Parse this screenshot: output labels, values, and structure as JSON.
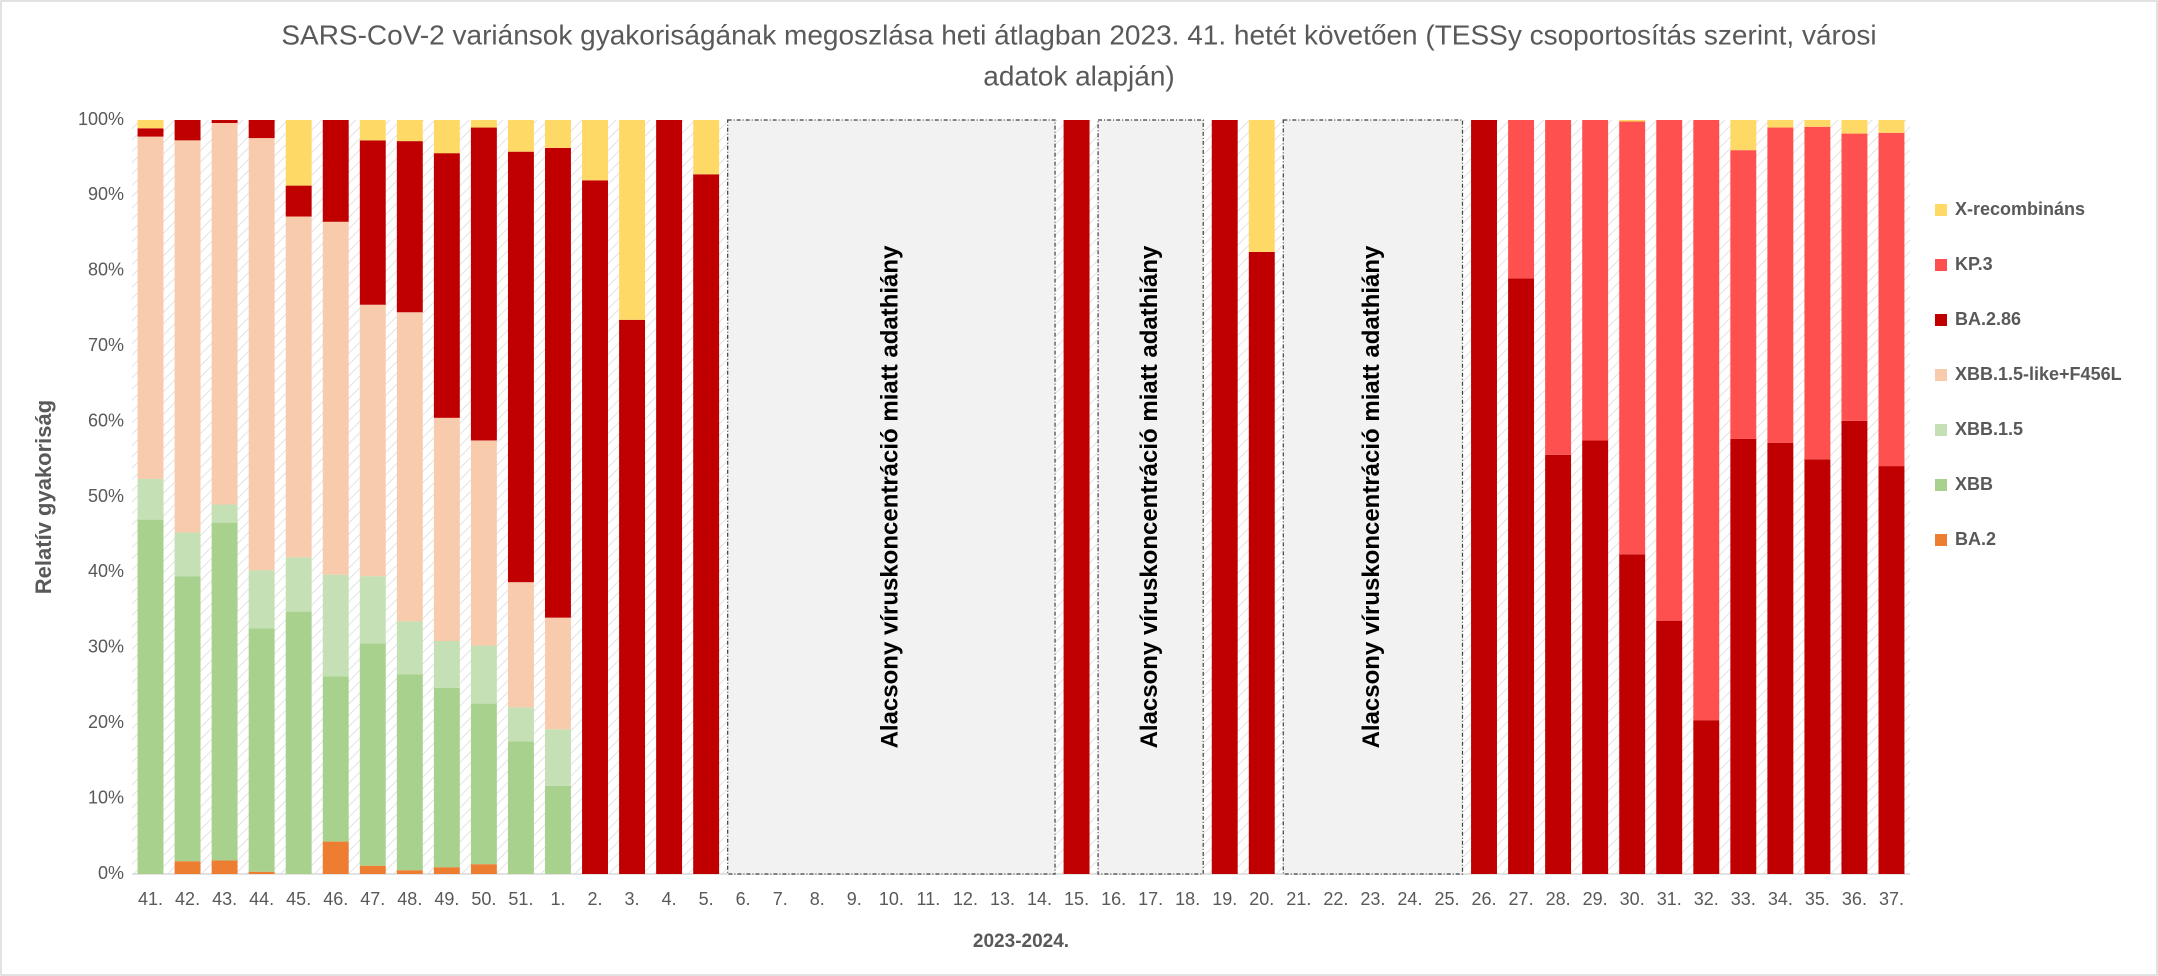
{
  "chart_data": {
    "type": "stacked-bar",
    "title": [
      "SARS-CoV-2 variánsok gyakoriságának megoszlása heti átlagban 2023. 41. hetét követően (TESSy csoportosítás szerint, városi",
      "adatok alapján)"
    ],
    "x_label": "2023-2024.",
    "y_label": "Relatív gyakoriság",
    "categories": [
      "41.",
      "42.",
      "43.",
      "44.",
      "45.",
      "46.",
      "47.",
      "48.",
      "49.",
      "50.",
      "51.",
      "1.",
      "2.",
      "3.",
      "4.",
      "5.",
      "6.",
      "7.",
      "8.",
      "9.",
      "10.",
      "11.",
      "12.",
      "13.",
      "14.",
      "15.",
      "16.",
      "17.",
      "18.",
      "19.",
      "20.",
      "21.",
      "22.",
      "23.",
      "24.",
      "25.",
      "26.",
      "27.",
      "28.",
      "29.",
      "30.",
      "31.",
      "32.",
      "33.",
      "34.",
      "35.",
      "36.",
      "37."
    ],
    "series": [
      {
        "name": "BA.2",
        "color": "#ed7d31",
        "values": [
          0,
          1.7,
          1.8,
          0.3,
          0,
          4.3,
          1.1,
          0.5,
          0.9,
          1.3,
          0,
          0,
          0,
          0,
          0,
          0,
          null,
          null,
          null,
          null,
          null,
          null,
          null,
          null,
          null,
          0,
          null,
          null,
          null,
          0,
          0,
          null,
          null,
          null,
          null,
          null,
          0,
          0,
          0,
          0,
          0,
          0,
          0,
          0,
          0,
          0,
          0,
          0
        ]
      },
      {
        "name": "XBB",
        "color": "#a9d18e",
        "values": [
          47,
          37.8,
          44.8,
          32.3,
          34.8,
          21.9,
          29.5,
          26,
          23.8,
          21.3,
          17.6,
          11.7,
          0,
          0,
          0,
          0,
          null,
          null,
          null,
          null,
          null,
          null,
          null,
          null,
          null,
          0,
          null,
          null,
          null,
          0,
          0,
          null,
          null,
          null,
          null,
          null,
          0,
          0,
          0,
          0,
          0,
          0,
          0,
          0,
          0,
          0,
          0,
          0
        ]
      },
      {
        "name": "XBB.1.5",
        "color": "#c5e0b4",
        "values": [
          5.4,
          5.8,
          2.4,
          7.7,
          7.2,
          13.5,
          8.9,
          7,
          6.2,
          7.7,
          4.5,
          7.5,
          0,
          0,
          0,
          0,
          null,
          null,
          null,
          null,
          null,
          null,
          null,
          null,
          null,
          0,
          null,
          null,
          null,
          0,
          0,
          null,
          null,
          null,
          null,
          null,
          0,
          0,
          0,
          0,
          0,
          0,
          0,
          0,
          0,
          0,
          0,
          0
        ]
      },
      {
        "name": "XBB.1.5-like+F456L",
        "color": "#f8cbad",
        "values": [
          45.4,
          52,
          50.6,
          57.3,
          45.2,
          46.8,
          36,
          41,
          29.6,
          27.2,
          16.6,
          14.8,
          0,
          0,
          0,
          0,
          null,
          null,
          null,
          null,
          null,
          null,
          null,
          null,
          null,
          0,
          null,
          null,
          null,
          0,
          0,
          null,
          null,
          null,
          null,
          null,
          0,
          0,
          0,
          0,
          0,
          0,
          0,
          0,
          0,
          0,
          0,
          0
        ]
      },
      {
        "name": "BA.2.86",
        "color": "#c00000",
        "values": [
          1.1,
          2.7,
          0.4,
          2.4,
          4.1,
          13.5,
          21.8,
          22.7,
          35.1,
          41.5,
          57.1,
          62.3,
          92,
          73.5,
          100,
          92.8,
          null,
          null,
          null,
          null,
          null,
          null,
          null,
          null,
          null,
          100,
          null,
          null,
          null,
          100,
          82.5,
          null,
          null,
          null,
          null,
          null,
          100,
          79,
          55.6,
          57.5,
          42.4,
          33.6,
          20.4,
          57.7,
          57.2,
          55,
          60.1,
          54.1
        ]
      },
      {
        "name": "KP.3",
        "color": "#ff5050",
        "values": [
          0,
          0,
          0,
          0,
          0,
          0,
          0,
          0,
          0,
          0,
          0,
          0,
          0,
          0,
          0,
          0,
          null,
          null,
          null,
          null,
          null,
          null,
          null,
          null,
          null,
          0,
          null,
          null,
          null,
          0,
          0,
          null,
          null,
          null,
          null,
          null,
          0,
          21,
          44.4,
          42.5,
          57.4,
          66.4,
          79.6,
          38.3,
          41.8,
          44.1,
          38.1,
          44.2
        ]
      },
      {
        "name": "X-recombináns",
        "color": "#ffd966",
        "values": [
          1.1,
          0,
          0,
          0,
          8.7,
          0,
          2.7,
          2.8,
          4.4,
          1,
          4.2,
          3.7,
          8,
          26.5,
          0,
          7.2,
          null,
          null,
          null,
          null,
          null,
          null,
          null,
          null,
          null,
          0,
          null,
          null,
          null,
          0,
          17.5,
          null,
          null,
          null,
          null,
          null,
          0,
          0,
          0,
          0,
          0.2,
          0,
          0,
          4,
          1,
          0.9,
          1.8,
          1.7
        ]
      }
    ],
    "annotations": [
      "Alacsony víruskoncentráció miatt adathiány",
      "Alacsony víruskoncentráció miatt adathiány",
      "Alacsony víruskoncentráció miatt adathiány"
    ],
    "ylim": [
      0,
      100
    ],
    "yticks": [
      {
        "value": 0,
        "label": "0%"
      },
      {
        "value": 10,
        "label": "10%"
      },
      {
        "value": 20,
        "label": "20%"
      },
      {
        "value": 30,
        "label": "30%"
      },
      {
        "value": 40,
        "label": "40%"
      },
      {
        "value": 50,
        "label": "50%"
      },
      {
        "value": 60,
        "label": "60%"
      },
      {
        "value": 70,
        "label": "70%"
      },
      {
        "value": 80,
        "label": "80%"
      },
      {
        "value": 90,
        "label": "90%"
      },
      {
        "value": 100,
        "label": "100%"
      }
    ],
    "grid": false,
    "legend_position": "right"
  }
}
